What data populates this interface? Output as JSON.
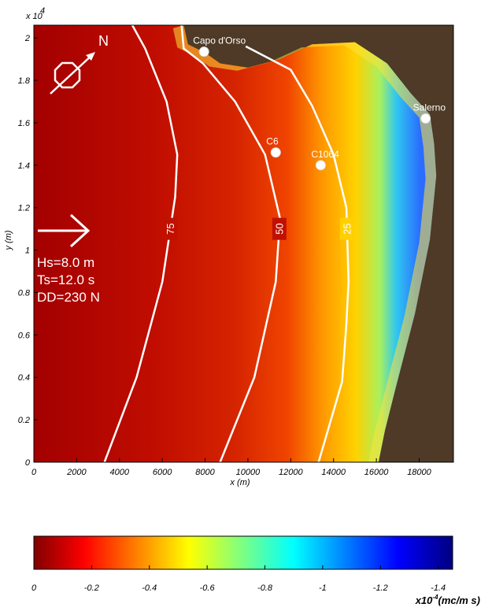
{
  "chart_data": [
    {
      "type": "heatmap",
      "title": "",
      "xlabel": "x (m)",
      "ylabel": "y (m)",
      "xlim": [
        0,
        19600
      ],
      "ylim": [
        0,
        20600
      ],
      "x_ticks": [
        0,
        2000,
        4000,
        6000,
        8000,
        10000,
        12000,
        14000,
        16000,
        18000
      ],
      "y_ticks": [
        0,
        0.2,
        0.4,
        0.6,
        0.8,
        1,
        1.2,
        1.4,
        1.6,
        1.8,
        2
      ],
      "y_multiplier": "x 10",
      "y_multiplier_exp": "4",
      "colormap": "jet (reversed: dark red = 0, dark blue = -1.4)",
      "land_color": "#4e3a26",
      "contours": [
        {
          "label": "75",
          "points": [
            [
              3300,
              0
            ],
            [
              4800,
              4000
            ],
            [
              6000,
              8500
            ],
            [
              6600,
              12500
            ],
            [
              6700,
              14500
            ],
            [
              6200,
              17000
            ],
            [
              5200,
              19500
            ],
            [
              4600,
              20600
            ]
          ]
        },
        {
          "label": "50",
          "points": [
            [
              8700,
              0
            ],
            [
              10300,
              4000
            ],
            [
              11300,
              8500
            ],
            [
              11500,
              11500
            ],
            [
              10800,
              14500
            ],
            [
              9400,
              17000
            ],
            [
              7900,
              18800
            ],
            [
              7000,
              19500
            ],
            [
              6900,
              20600
            ]
          ]
        },
        {
          "label": "25",
          "points": [
            [
              13300,
              0
            ],
            [
              14400,
              3800
            ],
            [
              14600,
              6500
            ],
            [
              14700,
              8500
            ],
            [
              14600,
              12000
            ],
            [
              14000,
              14500
            ],
            [
              13000,
              16800
            ],
            [
              12000,
              18500
            ],
            [
              9900,
              19600
            ]
          ]
        }
      ],
      "locations": [
        {
          "name": "Capo d'Orso",
          "x": 7950,
          "y": 19350
        },
        {
          "name": "C6",
          "x": 11300,
          "y": 14600
        },
        {
          "name": "C1064",
          "x": 13400,
          "y": 14000
        },
        {
          "name": "Salerno",
          "x": 18300,
          "y": 16200
        }
      ],
      "annotations": {
        "wave_height": "Hs=8.0 m",
        "wave_period": "Ts=12.0 s",
        "wave_direction": "DD=230 N",
        "north": "N"
      }
    },
    {
      "type": "heatmap",
      "title": "",
      "colorbar_ticks": [
        "0",
        "-0.2",
        "-0.4",
        "-0.6",
        "-0.8",
        "-1",
        "-1.2",
        "-1.4"
      ],
      "colorbar_values": [
        0,
        -0.2,
        -0.4,
        -0.6,
        -0.8,
        -1,
        -1.2,
        -1.4
      ],
      "clim": [
        0,
        -1.45
      ],
      "units_prefix": "x10",
      "units_exp": "-4",
      "units_suffix": "(mc/m s)"
    }
  ]
}
